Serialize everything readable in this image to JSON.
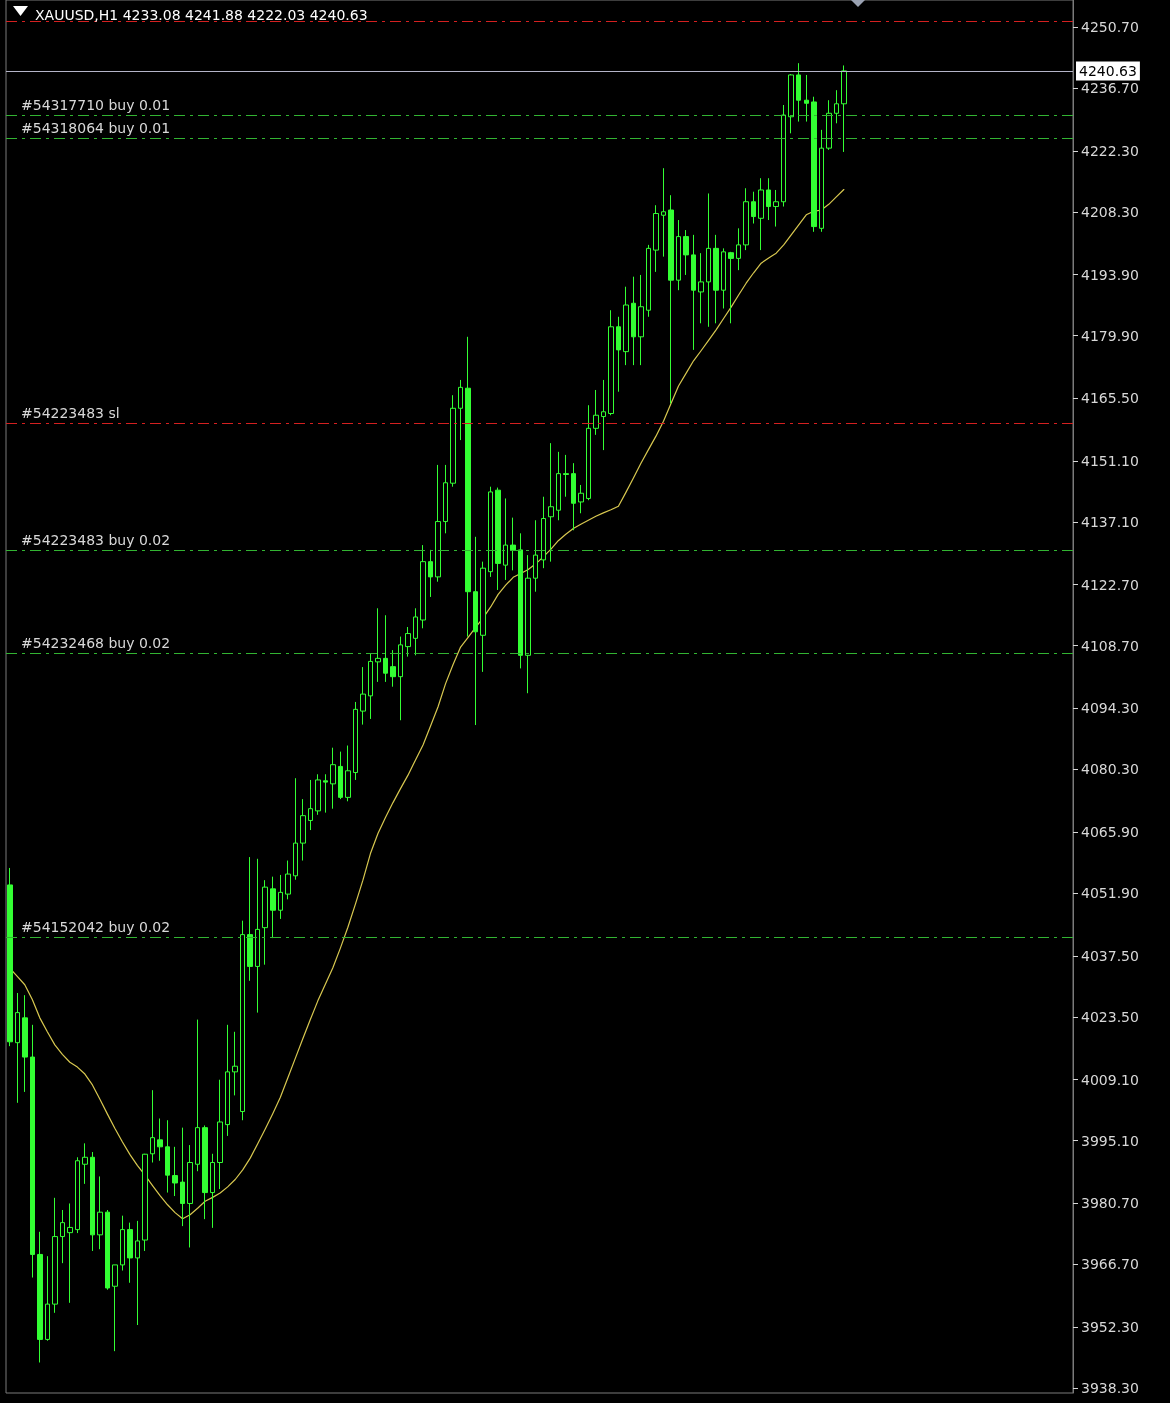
{
  "chart_data": {
    "type": "candlestick",
    "title": "XAUUSD,H1 4233.08 4241.88 4222.03 4240.63",
    "color": "#33ff33",
    "marker": "none",
    "tick_labels": "y",
    "categories": [
      null,
      null,
      null,
      null,
      null,
      null,
      null,
      null,
      null,
      null,
      null,
      null,
      null,
      null,
      null,
      null,
      null,
      null,
      null,
      null,
      null,
      null,
      null,
      null,
      null,
      null,
      null,
      null,
      null,
      null,
      null,
      null,
      null,
      null,
      null,
      null,
      null,
      null,
      null,
      null,
      null,
      null,
      null,
      null,
      null,
      null,
      null,
      null,
      null,
      null,
      null,
      null,
      null,
      null,
      null,
      null,
      null,
      null,
      null,
      null,
      null,
      null,
      null,
      null,
      null,
      null,
      null,
      null,
      null,
      null,
      null,
      null,
      null,
      null,
      null,
      null,
      null,
      null,
      null,
      null,
      null,
      null,
      null,
      null,
      null,
      null,
      null,
      null,
      null,
      null,
      null,
      null,
      null,
      null,
      null,
      null,
      null,
      null,
      null,
      null,
      null,
      null,
      null,
      null,
      null,
      null,
      null,
      null,
      null,
      null,
      null,
      null
    ],
    "ohlc": [
      [
        4053.8,
        4057.7,
        4016.8,
        4017.8
      ],
      [
        4017.6,
        4029.0,
        4003.8,
        4024.5
      ],
      [
        4023.3,
        4028.5,
        4006.3,
        4014.3
      ],
      [
        4014.3,
        4021.7,
        3963.7,
        3969.0
      ],
      [
        3969.0,
        3974.2,
        3944.2,
        3949.5
      ],
      [
        3949.5,
        3968.6,
        3949.2,
        3957.6
      ],
      [
        3957.6,
        3982.0,
        3955.6,
        3973.1
      ],
      [
        3973.1,
        3979.2,
        3967.0,
        3976.3
      ],
      [
        3974.0,
        3980.7,
        3957.9,
        3975.2
      ],
      [
        3974.7,
        3991.3,
        3973.9,
        3990.5
      ],
      [
        3989.7,
        3994.5,
        3985.2,
        3991.3
      ],
      [
        3991.3,
        3992.5,
        3969.8,
        3973.5
      ],
      [
        3973.5,
        3986.9,
        3970.2,
        3978.7
      ],
      [
        3978.7,
        3979.2,
        3960.9,
        3961.3
      ],
      [
        3961.7,
        3966.6,
        3946.8,
        3966.6
      ],
      [
        3966.6,
        3977.9,
        3965.3,
        3974.7
      ],
      [
        3974.7,
        3976.3,
        3962.5,
        3968.2
      ],
      [
        3968.2,
        3976.7,
        3952.8,
        3972.1
      ],
      [
        3972.3,
        3992.1,
        3969.8,
        3992.0
      ],
      [
        3992.1,
        4006.7,
        3990.1,
        3995.8
      ],
      [
        3995.3,
        4000.2,
        3990.5,
        3993.7
      ],
      [
        3993.7,
        3999.8,
        3983.2,
        3987.2
      ],
      [
        3987.1,
        3993.7,
        3982.4,
        3985.4
      ],
      [
        3985.6,
        3998.1,
        3975.5,
        3980.7
      ],
      [
        3980.7,
        3994.1,
        3970.6,
        3990.1
      ],
      [
        3989.7,
        4022.9,
        3988.1,
        3998.1
      ],
      [
        3998.1,
        3998.6,
        3977.1,
        3983.2
      ],
      [
        3983.2,
        3992.1,
        3975.1,
        3990.1
      ],
      [
        3990.1,
        4009.1,
        3984.0,
        3999.4
      ],
      [
        3998.8,
        4021.7,
        3996.2,
        4010.9
      ],
      [
        4010.9,
        4020.1,
        4005.5,
        4012.2
      ],
      [
        4001.8,
        4045.6,
        3999.8,
        4042.4
      ],
      [
        4042.4,
        4060.2,
        4031.8,
        4035.1
      ],
      [
        4035.1,
        4059.8,
        4024.5,
        4043.6
      ],
      [
        4044.0,
        4054.9,
        4035.5,
        4053.3
      ],
      [
        4052.9,
        4055.7,
        4041.6,
        4048.0
      ],
      [
        4048.0,
        4056.1,
        4046.0,
        4052.1
      ],
      [
        4051.7,
        4059.4,
        4050.5,
        4056.3
      ],
      [
        4055.9,
        4078.3,
        4055.0,
        4063.4
      ],
      [
        4063.4,
        4073.5,
        4059.4,
        4069.7
      ],
      [
        4068.6,
        4077.9,
        4066.4,
        4071.3
      ],
      [
        4070.8,
        4079.2,
        4069.9,
        4077.9
      ],
      [
        4077.7,
        4079.2,
        4070.4,
        4077.4
      ],
      [
        4077.0,
        4085.3,
        4071.3,
        4081.4
      ],
      [
        4081.0,
        4084.4,
        4073.5,
        4073.9
      ],
      [
        4073.9,
        4085.8,
        4073.0,
        4080.0
      ],
      [
        4079.6,
        4095.8,
        4077.9,
        4094.1
      ],
      [
        4093.7,
        4103.8,
        4090.6,
        4097.6
      ],
      [
        4097.2,
        4106.8,
        4091.9,
        4105.1
      ],
      [
        4105.0,
        4117.3,
        4100.4,
        4105.8
      ],
      [
        4105.8,
        4115.7,
        4100.4,
        4102.4
      ],
      [
        4103.9,
        4107.7,
        4099.3,
        4101.6
      ],
      [
        4101.6,
        4110.8,
        4091.6,
        4108.9
      ],
      [
        4108.5,
        4113.0,
        4106.2,
        4111.5
      ],
      [
        4110.4,
        4117.3,
        4106.5,
        4115.3
      ],
      [
        4114.6,
        4131.8,
        4112.7,
        4128.0
      ],
      [
        4128.0,
        4130.7,
        4119.9,
        4124.5
      ],
      [
        4124.5,
        4150.2,
        4123.4,
        4137.2
      ],
      [
        4137.2,
        4150.2,
        4134.5,
        4146.1
      ],
      [
        4146.0,
        4166.2,
        4145.2,
        4163.2
      ],
      [
        4163.2,
        4169.7,
        4155.9,
        4168.0
      ],
      [
        4167.8,
        4179.6,
        4110.8,
        4121.1
      ],
      [
        4121.1,
        4133.7,
        4090.5,
        4111.9
      ],
      [
        4111.1,
        4128.0,
        4102.7,
        4126.5
      ],
      [
        4125.7,
        4145.2,
        4124.5,
        4144.0
      ],
      [
        4144.4,
        4145.0,
        4121.5,
        4127.6
      ],
      [
        4127.2,
        4142.5,
        4123.8,
        4131.8
      ],
      [
        4131.8,
        4138.1,
        4126.0,
        4130.7
      ],
      [
        4130.7,
        4134.5,
        4103.5,
        4106.5
      ],
      [
        4106.5,
        4129.5,
        4097.8,
        4124.2
      ],
      [
        4124.2,
        4137.5,
        4121.1,
        4129.5
      ],
      [
        4128.4,
        4142.9,
        4126.5,
        4137.9
      ],
      [
        4138.3,
        4155.2,
        4128.0,
        4140.6
      ],
      [
        4139.8,
        4153.2,
        4137.5,
        4148.2
      ],
      [
        4148.2,
        4152.5,
        4142.9,
        4148.0
      ],
      [
        4148.2,
        4150.6,
        4135.2,
        4141.4
      ],
      [
        4141.7,
        4145.6,
        4139.1,
        4143.7
      ],
      [
        4142.5,
        4163.9,
        4142.1,
        4158.6
      ],
      [
        4158.6,
        4167.4,
        4157.1,
        4161.6
      ],
      [
        4161.3,
        4169.7,
        4153.6,
        4162.4
      ],
      [
        4162.0,
        4185.7,
        4161.6,
        4181.9
      ],
      [
        4181.9,
        4184.2,
        4167.0,
        4176.6
      ],
      [
        4176.2,
        4191.1,
        4173.1,
        4186.9
      ],
      [
        4187.3,
        4193.4,
        4173.1,
        4179.6
      ],
      [
        4179.6,
        4193.8,
        4173.1,
        4186.5
      ],
      [
        4185.7,
        4200.7,
        4184.2,
        4199.9
      ],
      [
        4199.5,
        4209.8,
        4194.5,
        4207.9
      ],
      [
        4207.5,
        4218.3,
        4198.0,
        4208.3
      ],
      [
        4208.7,
        4212.1,
        4164.3,
        4192.6
      ],
      [
        4192.6,
        4206.4,
        4190.3,
        4202.6
      ],
      [
        4202.6,
        4204.1,
        4193.8,
        4198.4
      ],
      [
        4198.4,
        4203.0,
        4176.6,
        4190.3
      ],
      [
        4189.9,
        4198.8,
        4182.7,
        4192.2
      ],
      [
        4192.2,
        4212.5,
        4181.9,
        4199.9
      ],
      [
        4199.9,
        4203.0,
        4182.7,
        4190.3
      ],
      [
        4190.3,
        4199.9,
        4186.1,
        4199.1
      ],
      [
        4198.9,
        4199.1,
        4182.7,
        4197.6
      ],
      [
        4197.6,
        4204.5,
        4194.9,
        4200.7
      ],
      [
        4200.7,
        4213.7,
        4199.5,
        4210.6
      ],
      [
        4210.6,
        4212.9,
        4205.6,
        4207.2
      ],
      [
        4206.8,
        4216.0,
        4199.5,
        4213.3
      ],
      [
        4213.3,
        4216.0,
        4206.4,
        4209.5
      ],
      [
        4209.5,
        4213.3,
        4204.9,
        4210.6
      ],
      [
        4210.6,
        4232.8,
        4209.5,
        4230.5
      ],
      [
        4230.1,
        4239.9,
        4226.3,
        4239.7
      ],
      [
        4239.7,
        4242.4,
        4229.0,
        4233.9
      ],
      [
        4233.9,
        4239.7,
        4229.0,
        4233.2
      ],
      [
        4233.5,
        4234.7,
        4203.7,
        4204.9
      ],
      [
        4204.5,
        4227.1,
        4203.7,
        4222.9
      ],
      [
        4222.9,
        4233.9,
        4222.5,
        4230.9
      ],
      [
        4230.9,
        4236.2,
        4228.6,
        4233.08
      ],
      [
        4233.08,
        4241.88,
        4222.03,
        4240.63
      ]
    ],
    "series": [
      {
        "type": "line",
        "color": "#d8c850",
        "values": [
          4034.7,
          4032.8,
          4030.9,
          4027.5,
          4023.3,
          4020.1,
          4017.1,
          4014.9,
          4013.1,
          4012.0,
          4010.4,
          4007.9,
          4004.6,
          4001.2,
          3997.9,
          3994.8,
          3991.9,
          3989.4,
          3987.2,
          3984.8,
          3982.5,
          3980.4,
          3978.6,
          3977.2,
          3978.1,
          3979.6,
          3981.2,
          3982.1,
          3983.1,
          3984.5,
          3986.2,
          3988.4,
          3991.1,
          3994.4,
          3997.8,
          4001.3,
          4005.0,
          4009.5,
          4014.0,
          4018.5,
          4022.9,
          4027.2,
          4031.0,
          4034.8,
          4039.3,
          4044.1,
          4049.4,
          4054.9,
          4061.0,
          4065.6,
          4069.3,
          4072.7,
          4075.9,
          4079.0,
          4082.5,
          4085.9,
          4090.3,
          4094.7,
          4100.0,
          4104.4,
          4108.4,
          4110.6,
          4112.9,
          4115.1,
          4117.6,
          4120.5,
          4122.6,
          4124.4,
          4125.3,
          4126.2,
          4127.5,
          4129.1,
          4130.8,
          4132.8,
          4134.3,
          4135.6,
          4136.6,
          4137.5,
          4138.4,
          4139.2,
          4139.9,
          4140.7,
          4143.9,
          4147.2,
          4150.6,
          4153.7,
          4156.8,
          4160.2,
          4164.3,
          4168.3,
          4171.2,
          4174.1,
          4176.4,
          4178.8,
          4181.2,
          4183.8,
          4186.4,
          4189.2,
          4191.9,
          4194.3,
          4196.5,
          4197.7,
          4198.8,
          4200.7,
          4203.0,
          4205.3,
          4207.6,
          4208.4,
          4208.7,
          4210.0,
          4211.7,
          4213.4
        ]
      }
    ],
    "ylim": [
      3937.2,
      4256.9
    ],
    "yticks": [
      {
        "value": 3938.3,
        "label": "3938.30"
      },
      {
        "value": 3952.3,
        "label": "3952.30"
      },
      {
        "value": 3966.7,
        "label": "3966.70"
      },
      {
        "value": 3980.7,
        "label": "3980.70"
      },
      {
        "value": 3995.1,
        "label": "3995.10"
      },
      {
        "value": 4009.1,
        "label": "4009.10"
      },
      {
        "value": 4023.5,
        "label": "4023.50"
      },
      {
        "value": 4037.5,
        "label": "4037.50"
      },
      {
        "value": 4051.9,
        "label": "4051.90"
      },
      {
        "value": 4065.9,
        "label": "4065.90"
      },
      {
        "value": 4080.3,
        "label": "4080.30"
      },
      {
        "value": 4094.3,
        "label": "4094.30"
      },
      {
        "value": 4108.7,
        "label": "4108.70"
      },
      {
        "value": 4122.7,
        "label": "4122.70"
      },
      {
        "value": 4137.1,
        "label": "4137.10"
      },
      {
        "value": 4151.1,
        "label": "4151.10"
      },
      {
        "value": 4165.5,
        "label": "4165.50"
      },
      {
        "value": 4179.9,
        "label": "4179.90"
      },
      {
        "value": 4193.9,
        "label": "4193.90"
      },
      {
        "value": 4208.3,
        "label": "4208.30"
      },
      {
        "value": 4222.3,
        "label": "4222.30"
      },
      {
        "value": 4236.7,
        "label": "4236.70"
      },
      {
        "value": 4250.7,
        "label": "4250.70"
      }
    ],
    "ref_lines": [
      {
        "axis": "y",
        "value": 4252.1,
        "color": "#d42020",
        "line_style": "dashed"
      },
      {
        "axis": "y",
        "value": 4240.63,
        "label": "4240.63",
        "color": "#b4b4c8",
        "line_style": "solid"
      },
      {
        "axis": "y",
        "value": 4230.5,
        "label": "#54317710 buy 0.01",
        "color": "#32b432",
        "line_style": "dashed"
      },
      {
        "axis": "y",
        "value": 4225.2,
        "label": "#54318064 buy 0.01",
        "color": "#32b432",
        "line_style": "dashed"
      },
      {
        "axis": "y",
        "value": 4159.8,
        "label": "#54223483 sl",
        "color": "#d42020",
        "line_style": "dashed"
      },
      {
        "axis": "y",
        "value": 4130.7,
        "label": "#54223483 buy 0.02",
        "color": "#32b432",
        "line_style": "dashed"
      },
      {
        "axis": "y",
        "value": 4107.0,
        "label": "#54232468 buy 0.02",
        "color": "#32b432",
        "line_style": "dashed"
      },
      {
        "axis": "y",
        "value": 4041.8,
        "label": "#54152042 buy 0.02",
        "color": "#32b432",
        "line_style": "dashed"
      }
    ]
  }
}
